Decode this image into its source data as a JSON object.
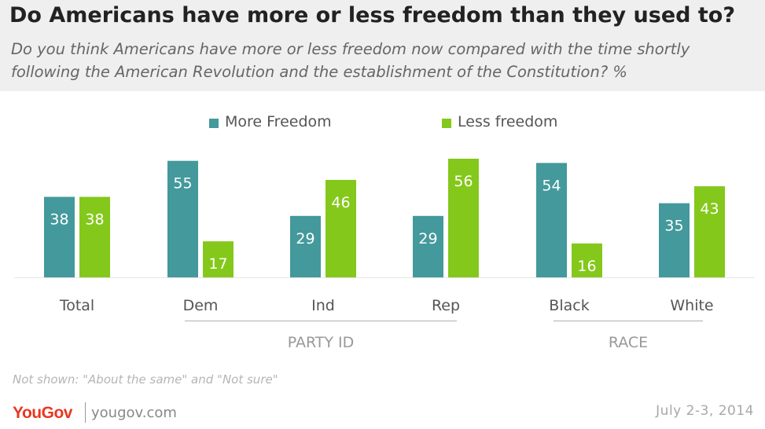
{
  "header": {
    "title": "Do Americans have more or less freedom than they used to?",
    "subtitle": "Do you think Americans have more or less freedom now compared with the time shortly following the American Revolution and the establishment of the Constitution? %"
  },
  "chart_data": {
    "type": "bar",
    "categories": [
      "Total",
      "Dem",
      "Ind",
      "Rep",
      "Black",
      "White"
    ],
    "series": [
      {
        "name": "More Freedom",
        "color": "#43999b",
        "values": [
          38,
          55,
          29,
          29,
          54,
          35
        ]
      },
      {
        "name": "Less freedom",
        "color": "#84c81b",
        "values": [
          38,
          17,
          46,
          56,
          16,
          43
        ]
      }
    ],
    "groups": [
      {
        "label": "PARTY ID",
        "categories": [
          "Dem",
          "Ind",
          "Rep"
        ]
      },
      {
        "label": "RACE",
        "categories": [
          "Black",
          "White"
        ]
      }
    ],
    "ylim": [
      0,
      56
    ],
    "grid": false,
    "legend_position": "top-center"
  },
  "footer": {
    "note": "Not shown: \"About the same\" and \"Not sure\"",
    "logo_text": "YouGov",
    "site": "yougov.com",
    "date": "July 2-3, 2014"
  }
}
